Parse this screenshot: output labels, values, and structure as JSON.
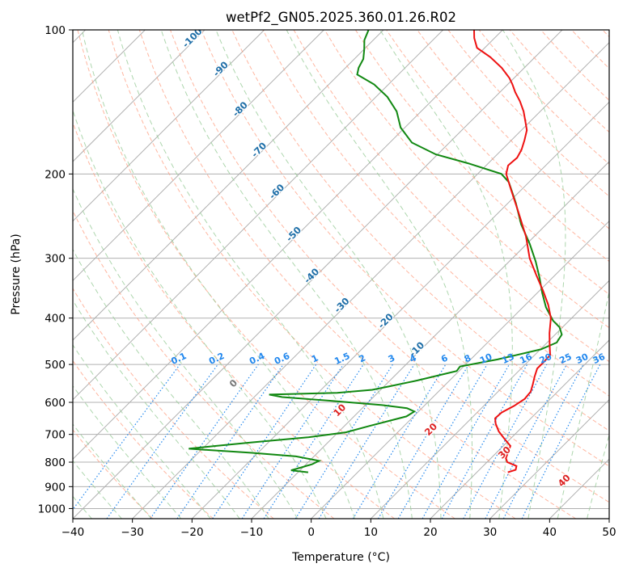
{
  "chart_data": {
    "type": "line",
    "title": "wetPf2_GN05.2025.360.01.26.R02",
    "xlabel": "Temperature (°C)",
    "ylabel": "Pressure (hPa)",
    "xlim": [
      -40,
      50
    ],
    "ylim": [
      1050,
      100
    ],
    "y_scale": "log",
    "grid": true,
    "x_ticks": [
      "−40",
      "−30",
      "−20",
      "−10",
      "0",
      "10",
      "20",
      "30",
      "40",
      "50"
    ],
    "y_ticks": [
      "100",
      "200",
      "300",
      "400",
      "500",
      "600",
      "700",
      "800",
      "900",
      "1000"
    ],
    "isotherm_labels": [
      "-100",
      "-90",
      "-80",
      "-70",
      "-60",
      "-50",
      "-40",
      "-30",
      "-20",
      "-10"
    ],
    "mixing_ratio_labels": [
      "0.1",
      "0.2",
      "0.4",
      "0.6",
      "1",
      "1.5",
      "2",
      "3",
      "4",
      "6",
      "8",
      "10",
      "13",
      "16",
      "20",
      "25",
      "30",
      "36"
    ],
    "moist_adiabat_labels": [
      "0",
      "10",
      "20",
      "30",
      "40"
    ],
    "colors": {
      "temperature": "#ee1111",
      "dewpoint": "#118811",
      "isotherm_label": "#1f6fa8",
      "mixing_ratio": "#2288ee",
      "moist_label_warm": "#dd2222",
      "moist_label_zero": "#777777",
      "dry_adiabat": "#ff9e80",
      "moist_adiabat": "#99cc99",
      "grid": "#b0b0b0"
    },
    "series": [
      {
        "key": "temperature",
        "points": [
          [
            25.2,
            840
          ],
          [
            26.1,
            830
          ],
          [
            25.6,
            815
          ],
          [
            23.4,
            800
          ],
          [
            22.5,
            785
          ],
          [
            21.8,
            760
          ],
          [
            21.2,
            740
          ],
          [
            19.0,
            715
          ],
          [
            16.8,
            690
          ],
          [
            15.0,
            665
          ],
          [
            14.0,
            648
          ],
          [
            14.1,
            630
          ],
          [
            15.1,
            610
          ],
          [
            15.7,
            590
          ],
          [
            15.5,
            570
          ],
          [
            14.6,
            550
          ],
          [
            13.6,
            530
          ],
          [
            12.7,
            510
          ],
          [
            12.7,
            495
          ],
          [
            12.6,
            478
          ],
          [
            10.8,
            455
          ],
          [
            8.8,
            430
          ],
          [
            6.5,
            400
          ],
          [
            3.8,
            375
          ],
          [
            0.5,
            350
          ],
          [
            -3.2,
            325
          ],
          [
            -7.1,
            300
          ],
          [
            -11.4,
            270
          ],
          [
            -16.8,
            240
          ],
          [
            -21.9,
            215
          ],
          [
            -25.2,
            200
          ],
          [
            -26.3,
            192
          ],
          [
            -26.1,
            185
          ],
          [
            -26.7,
            178
          ],
          [
            -27.8,
            170
          ],
          [
            -29.1,
            162
          ],
          [
            -30.9,
            155
          ],
          [
            -32.8,
            148
          ],
          [
            -35.1,
            141
          ],
          [
            -37.4,
            135
          ],
          [
            -39.2,
            130
          ],
          [
            -40.8,
            126
          ],
          [
            -43.8,
            120
          ],
          [
            -47.5,
            114
          ],
          [
            -51.3,
            109
          ],
          [
            -53.4,
            104
          ],
          [
            -54.8,
            100
          ]
        ]
      },
      {
        "key": "dewpoint",
        "points": [
          [
            -8.3,
            840
          ],
          [
            -11.5,
            832
          ],
          [
            -10.4,
            822
          ],
          [
            -9.0,
            808
          ],
          [
            -8.4,
            795
          ],
          [
            -13.0,
            778
          ],
          [
            -21.0,
            765
          ],
          [
            -32.3,
            750
          ],
          [
            -28.3,
            740
          ],
          [
            -23.0,
            728
          ],
          [
            -14.2,
            710
          ],
          [
            -8.7,
            693
          ],
          [
            -5.8,
            672
          ],
          [
            -1.2,
            642
          ],
          [
            -0.7,
            627
          ],
          [
            -2.5,
            617
          ],
          [
            -7.2,
            608
          ],
          [
            -16.9,
            595
          ],
          [
            -25.3,
            585
          ],
          [
            -27.9,
            578
          ],
          [
            -16.8,
            573
          ],
          [
            -11.4,
            565
          ],
          [
            -9.2,
            556
          ],
          [
            -5.4,
            540
          ],
          [
            -0.4,
            516
          ],
          [
            -0.6,
            505
          ],
          [
            4.5,
            488
          ],
          [
            10.1,
            465
          ],
          [
            11.6,
            450
          ],
          [
            11.1,
            433
          ],
          [
            9.5,
            418
          ],
          [
            7.3,
            405
          ],
          [
            3.9,
            380
          ],
          [
            0.9,
            355
          ],
          [
            -2.1,
            330
          ],
          [
            -5.5,
            305
          ],
          [
            -9.5,
            280
          ],
          [
            -14.2,
            255
          ],
          [
            -18.7,
            230
          ],
          [
            -23.4,
            208
          ],
          [
            -26.0,
            200
          ],
          [
            -33.4,
            190
          ],
          [
            -40.3,
            182
          ],
          [
            -46.3,
            172
          ],
          [
            -50.7,
            160
          ],
          [
            -54.1,
            148
          ],
          [
            -58.1,
            138
          ],
          [
            -62.4,
            130
          ],
          [
            -66.9,
            124
          ],
          [
            -67.8,
            120
          ],
          [
            -68.5,
            115
          ],
          [
            -69.9,
            110
          ],
          [
            -71.5,
            105
          ],
          [
            -72.5,
            100
          ]
        ]
      }
    ]
  }
}
